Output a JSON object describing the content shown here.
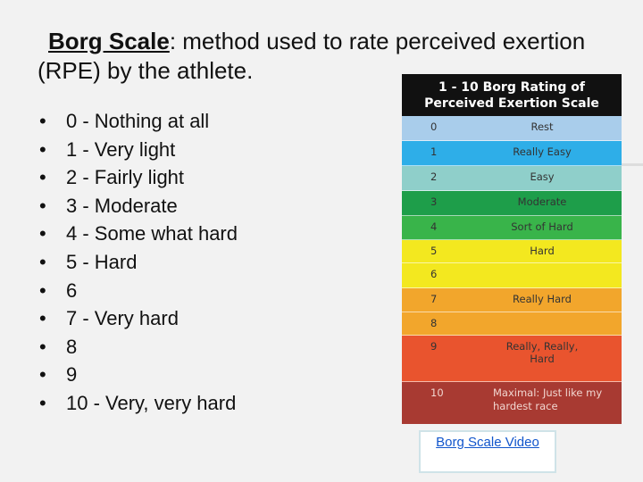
{
  "title": {
    "head": "Borg Scale",
    "rest": ": method used to rate perceived exertion (RPE) by the athlete."
  },
  "bullet_glyph": "•",
  "bullets": [
    "0 - Nothing at all",
    "1 - Very light",
    "2 - Fairly light",
    "3 - Moderate",
    "4 - Some what hard",
    "5 - Hard",
    "6",
    "7 - Very hard",
    "8",
    "9",
    "10 - Very, very hard"
  ],
  "scale": {
    "title_line1": "1 - 10 Borg Rating of",
    "title_line2": "Perceived Exertion Scale",
    "rows": [
      {
        "num": "0",
        "label": "Rest",
        "color": "#a9cdeb"
      },
      {
        "num": "1",
        "label": "Really Easy",
        "color": "#2eaee8"
      },
      {
        "num": "2",
        "label": "Easy",
        "color": "#8fcfca"
      },
      {
        "num": "3",
        "label": "Moderate",
        "color": "#1e9e4a"
      },
      {
        "num": "4",
        "label": "Sort of Hard",
        "color": "#39b44a"
      },
      {
        "num": "5",
        "label": "Hard",
        "color": "#f3e81f"
      },
      {
        "num": "6",
        "label": "",
        "color": "#f3e81f"
      },
      {
        "num": "7",
        "label": "Really Hard",
        "color": "#f2a62c"
      },
      {
        "num": "8",
        "label": "",
        "color": "#f2a62c"
      },
      {
        "num": "9",
        "label": "Really, Really, Hard",
        "color": "#e9542e"
      },
      {
        "num": "10",
        "label": "Maximal: Just like my hardest race",
        "color": "#a83a32"
      }
    ]
  },
  "video_link": "Borg Scale Video"
}
